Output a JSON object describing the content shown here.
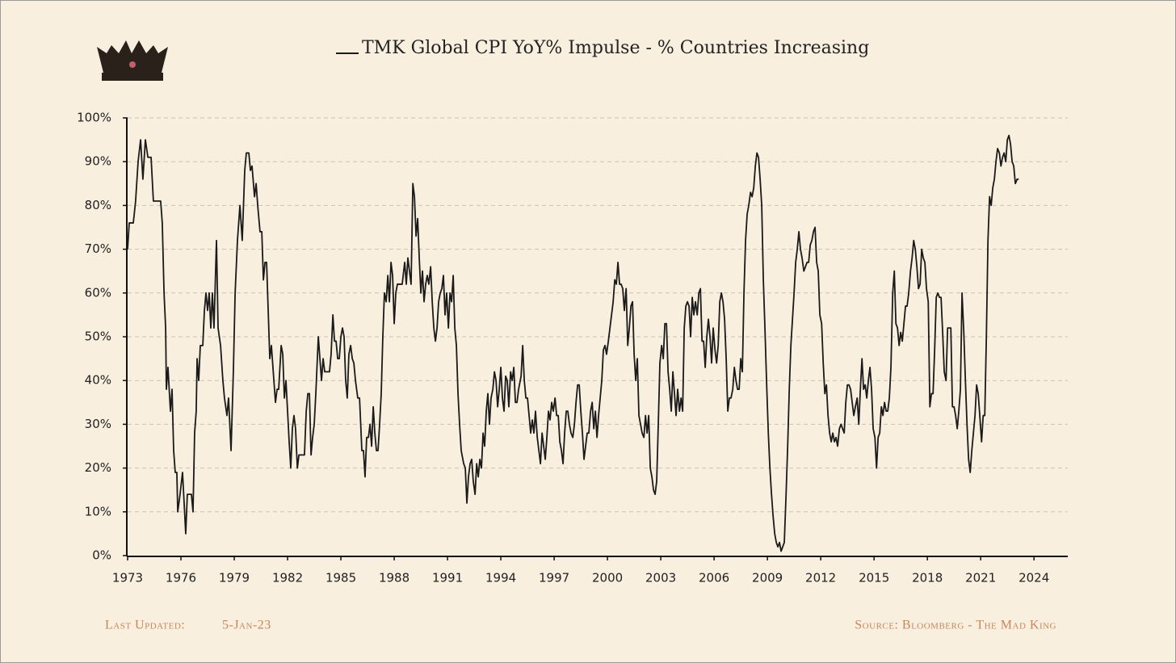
{
  "chart_data": {
    "type": "line",
    "footer": {
      "updated_label": "Last Updated:",
      "updated_date": "5-Jan-23",
      "source": "Source: Bloomberg - The Mad King"
    },
    "xlim": [
      1973,
      2025.9
    ],
    "xticks": [
      1973,
      1976,
      1979,
      1982,
      1985,
      1988,
      1991,
      1994,
      1997,
      2000,
      2003,
      2006,
      2009,
      2012,
      2015,
      2018,
      2021,
      2024
    ],
    "ylim": [
      0,
      100
    ],
    "yticks": [
      {
        "value": 0,
        "label": "0%"
      },
      {
        "value": 10,
        "label": "10%"
      },
      {
        "value": 20,
        "label": "20%"
      },
      {
        "value": 30,
        "label": "30%"
      },
      {
        "value": 40,
        "label": "40%"
      },
      {
        "value": 50,
        "label": "50%"
      },
      {
        "value": 60,
        "label": "60%"
      },
      {
        "value": 70,
        "label": "70%"
      },
      {
        "value": 80,
        "label": "80%"
      },
      {
        "value": 90,
        "label": "90%"
      },
      {
        "value": 100,
        "label": "100%"
      }
    ],
    "grid": true,
    "x": [
      1973.0,
      1973.09,
      1973.32,
      1973.45,
      1973.59,
      1973.73,
      1973.86,
      1974.0,
      1974.14,
      1974.32,
      1974.45,
      1974.86,
      1974.95,
      1975.05,
      1975.14,
      1975.18,
      1975.27,
      1975.41,
      1975.5,
      1975.59,
      1975.68,
      1975.77,
      1975.82,
      1975.95,
      1976.09,
      1976.18,
      1976.27,
      1976.36,
      1976.59,
      1976.68,
      1976.77,
      1976.86,
      1976.91,
      1977.0,
      1977.09,
      1977.23,
      1977.32,
      1977.41,
      1977.5,
      1977.59,
      1977.68,
      1977.77,
      1977.86,
      1978.0,
      1978.09,
      1978.23,
      1978.36,
      1978.45,
      1978.59,
      1978.68,
      1978.82,
      1978.95,
      1979.05,
      1979.18,
      1979.32,
      1979.45,
      1979.59,
      1979.68,
      1979.82,
      1979.91,
      1980.0,
      1980.14,
      1980.23,
      1980.32,
      1980.45,
      1980.55,
      1980.64,
      1980.73,
      1980.82,
      1981.0,
      1981.09,
      1981.23,
      1981.32,
      1981.41,
      1981.5,
      1981.64,
      1981.73,
      1981.82,
      1981.91,
      1982.0,
      1982.09,
      1982.18,
      1982.27,
      1982.36,
      1982.45,
      1982.55,
      1982.64,
      1982.95,
      1983.05,
      1983.14,
      1983.23,
      1983.32,
      1983.41,
      1983.5,
      1983.59,
      1983.73,
      1983.82,
      1983.91,
      1984.0,
      1984.09,
      1984.36,
      1984.45,
      1984.55,
      1984.64,
      1984.73,
      1984.82,
      1984.91,
      1985.0,
      1985.09,
      1985.18,
      1985.27,
      1985.36,
      1985.45,
      1985.55,
      1985.64,
      1985.73,
      1985.82,
      1985.95,
      1986.05,
      1986.18,
      1986.27,
      1986.36,
      1986.45,
      1986.55,
      1986.64,
      1986.73,
      1986.82,
      1986.91,
      1987.0,
      1987.09,
      1987.18,
      1987.27,
      1987.36,
      1987.45,
      1987.55,
      1987.64,
      1987.73,
      1987.82,
      1987.91,
      1988.0,
      1988.09,
      1988.18,
      1988.45,
      1988.59,
      1988.68,
      1988.77,
      1988.86,
      1988.95,
      1989.05,
      1989.14,
      1989.23,
      1989.32,
      1989.41,
      1989.5,
      1989.59,
      1989.68,
      1989.77,
      1989.86,
      1989.95,
      1990.05,
      1990.14,
      1990.23,
      1990.32,
      1990.41,
      1990.5,
      1990.59,
      1990.68,
      1990.77,
      1990.86,
      1990.95,
      1991.05,
      1991.14,
      1991.23,
      1991.32,
      1991.41,
      1991.5,
      1991.59,
      1991.68,
      1991.77,
      1991.91,
      1992.0,
      1992.09,
      1992.18,
      1992.27,
      1992.36,
      1992.45,
      1992.55,
      1992.64,
      1992.73,
      1992.82,
      1992.91,
      1993.0,
      1993.09,
      1993.18,
      1993.27,
      1993.36,
      1993.45,
      1993.55,
      1993.64,
      1993.73,
      1993.82,
      1993.91,
      1994.0,
      1994.09,
      1994.18,
      1994.27,
      1994.36,
      1994.45,
      1994.55,
      1994.64,
      1994.73,
      1994.82,
      1994.91,
      1995.0,
      1995.14,
      1995.23,
      1995.32,
      1995.41,
      1995.5,
      1995.59,
      1995.68,
      1995.77,
      1995.86,
      1995.95,
      1996.05,
      1996.14,
      1996.23,
      1996.32,
      1996.41,
      1996.5,
      1996.59,
      1996.68,
      1996.77,
      1996.86,
      1996.95,
      1997.05,
      1997.14,
      1997.23,
      1997.32,
      1997.41,
      1997.5,
      1997.59,
      1997.68,
      1997.77,
      1997.86,
      1997.95,
      1998.05,
      1998.14,
      1998.23,
      1998.32,
      1998.41,
      1998.5,
      1998.59,
      1998.68,
      1998.77,
      1998.86,
      1998.95,
      1999.05,
      1999.14,
      1999.23,
      1999.32,
      1999.41,
      1999.5,
      1999.59,
      1999.68,
      1999.77,
      1999.86,
      1999.95,
      2000.05,
      2000.14,
      2000.23,
      2000.32,
      2000.41,
      2000.5,
      2000.59,
      2000.68,
      2000.77,
      2000.86,
      2000.95,
      2001.05,
      2001.14,
      2001.23,
      2001.32,
      2001.41,
      2001.5,
      2001.59,
      2001.68,
      2001.77,
      2001.86,
      2001.95,
      2002.05,
      2002.14,
      2002.23,
      2002.32,
      2002.41,
      2002.5,
      2002.59,
      2002.68,
      2002.77,
      2002.86,
      2002.95,
      2003.05,
      2003.14,
      2003.23,
      2003.32,
      2003.41,
      2003.5,
      2003.59,
      2003.68,
      2003.77,
      2003.86,
      2003.95,
      2004.05,
      2004.14,
      2004.23,
      2004.32,
      2004.41,
      2004.5,
      2004.59,
      2004.68,
      2004.77,
      2004.86,
      2004.95,
      2005.05,
      2005.14,
      2005.23,
      2005.32,
      2005.41,
      2005.5,
      2005.59,
      2005.68,
      2005.77,
      2005.86,
      2005.95,
      2006.05,
      2006.14,
      2006.23,
      2006.32,
      2006.41,
      2006.5,
      2006.59,
      2006.68,
      2006.77,
      2006.86,
      2006.95,
      2007.05,
      2007.14,
      2007.23,
      2007.32,
      2007.41,
      2007.5,
      2007.59,
      2007.68,
      2007.77,
      2007.86,
      2007.95,
      2008.05,
      2008.14,
      2008.23,
      2008.32,
      2008.41,
      2008.5,
      2008.59,
      2008.68,
      2008.77,
      2008.86,
      2008.95,
      2009.05,
      2009.14,
      2009.23,
      2009.32,
      2009.41,
      2009.5,
      2009.59,
      2009.68,
      2009.77,
      2009.86,
      2009.95,
      2010.05,
      2010.14,
      2010.23,
      2010.32,
      2010.41,
      2010.5,
      2010.59,
      2010.68,
      2010.77,
      2010.86,
      2010.95,
      2011.05,
      2011.14,
      2011.23,
      2011.32,
      2011.41,
      2011.5,
      2011.59,
      2011.68,
      2011.77,
      2011.86,
      2011.95,
      2012.05,
      2012.14,
      2012.23,
      2012.32,
      2012.41,
      2012.5,
      2012.59,
      2012.68,
      2012.77,
      2012.86,
      2012.95,
      2013.05,
      2013.14,
      2013.23,
      2013.32,
      2013.41,
      2013.5,
      2013.59,
      2013.68,
      2013.77,
      2013.86,
      2013.95,
      2014.05,
      2014.14,
      2014.23,
      2014.32,
      2014.41,
      2014.5,
      2014.59,
      2014.68,
      2014.77,
      2014.86,
      2014.95,
      2015.05,
      2015.14,
      2015.23,
      2015.32,
      2015.41,
      2015.5,
      2015.59,
      2015.68,
      2015.77,
      2015.86,
      2015.95,
      2016.05,
      2016.14,
      2016.23,
      2016.32,
      2016.41,
      2016.5,
      2016.59,
      2016.68,
      2016.77,
      2016.86,
      2016.95,
      2017.05,
      2017.14,
      2017.23,
      2017.32,
      2017.41,
      2017.5,
      2017.59,
      2017.68,
      2017.77,
      2017.86,
      2017.95,
      2018.05,
      2018.14,
      2018.23,
      2018.32,
      2018.41,
      2018.5,
      2018.59,
      2018.68,
      2018.77,
      2018.86,
      2018.95,
      2019.05,
      2019.14,
      2019.32,
      2019.41,
      2019.5,
      2019.59,
      2019.68,
      2019.77,
      2019.86,
      2019.95,
      2020.05,
      2020.14,
      2020.23,
      2020.32,
      2020.41,
      2020.5,
      2020.59,
      2020.68,
      2020.77,
      2020.86,
      2020.95,
      2021.05,
      2021.14,
      2021.23,
      2021.32,
      2021.41,
      2021.5,
      2021.59,
      2021.68,
      2021.77,
      2021.86,
      2021.95,
      2022.05,
      2022.14,
      2022.23,
      2022.32,
      2022.41,
      2022.5,
      2022.59,
      2022.68,
      2022.77,
      2022.86,
      2022.95,
      2023.05,
      2023.14
    ],
    "series": [
      {
        "name": "TMK Global CPI YoY% Impulse - % Countries Increasing",
        "color": "#1a1a1a",
        "values": [
          70,
          76,
          76,
          81,
          90,
          95,
          86,
          95,
          91,
          91,
          81,
          81,
          76,
          60,
          52,
          38,
          43,
          33,
          38,
          24,
          19,
          19,
          10,
          14,
          19,
          12,
          5,
          14,
          14,
          10,
          28,
          33,
          45,
          40,
          48,
          48,
          56,
          60,
          56,
          60,
          52,
          60,
          52,
          72,
          52,
          48,
          40,
          36,
          32,
          36,
          24,
          42,
          60,
          72,
          80,
          72,
          88,
          92,
          92,
          88,
          89,
          82,
          85,
          80,
          74,
          74,
          63,
          67,
          67,
          45,
          48,
          40,
          35,
          38,
          38,
          48,
          46,
          36,
          40,
          33,
          26,
          20,
          29,
          32,
          29,
          20,
          23,
          23,
          33,
          37,
          37,
          23,
          27,
          30,
          37,
          50,
          45,
          40,
          45,
          42,
          42,
          46,
          55,
          49,
          49,
          45,
          45,
          50,
          52,
          50,
          40,
          36,
          46,
          48,
          45,
          44,
          40,
          36,
          36,
          24,
          24,
          18,
          27,
          27,
          30,
          25,
          34,
          28,
          24,
          24,
          30,
          37,
          50,
          60,
          58,
          64,
          58,
          67,
          64,
          53,
          60,
          62,
          62,
          67,
          62,
          68,
          65,
          62,
          85,
          82,
          73,
          77,
          68,
          60,
          65,
          58,
          62,
          64,
          62,
          66,
          58,
          52,
          49,
          52,
          58,
          60,
          61,
          64,
          55,
          60,
          52,
          60,
          58,
          64,
          52,
          48,
          37,
          30,
          24,
          21,
          20,
          12,
          18,
          21,
          22,
          17,
          14,
          21,
          18,
          22,
          20,
          28,
          25,
          33,
          37,
          30,
          36,
          38,
          42,
          40,
          34,
          38,
          43,
          36,
          33,
          41,
          40,
          34,
          42,
          40,
          43,
          35,
          35,
          38,
          41,
          48,
          40,
          36,
          36,
          32,
          28,
          31,
          28,
          33,
          27,
          24,
          21,
          28,
          25,
          22,
          27,
          33,
          31,
          35,
          33,
          36,
          32,
          32,
          26,
          24,
          21,
          28,
          33,
          33,
          30,
          28,
          27,
          30,
          35,
          39,
          39,
          33,
          28,
          22,
          25,
          28,
          28,
          33,
          35,
          29,
          33,
          27,
          32,
          36,
          40,
          47,
          48,
          46,
          49,
          52,
          55,
          58,
          63,
          62,
          67,
          62,
          62,
          61,
          56,
          61,
          48,
          52,
          57,
          58,
          46,
          40,
          45,
          32,
          30,
          28,
          27,
          32,
          28,
          32,
          20,
          18,
          15,
          14,
          17,
          30,
          44,
          48,
          45,
          53,
          53,
          42,
          38,
          33,
          42,
          37,
          32,
          38,
          33,
          36,
          33,
          52,
          57,
          58,
          57,
          50,
          59,
          55,
          58,
          55,
          60,
          61,
          49,
          49,
          43,
          50,
          54,
          50,
          44,
          52,
          47,
          44,
          48,
          58,
          60,
          58,
          54,
          45,
          33,
          36,
          36,
          38,
          43,
          40,
          38,
          38,
          45,
          42,
          60,
          72,
          78,
          80,
          83,
          82,
          84,
          89,
          92,
          91,
          86,
          80,
          63,
          52,
          40,
          28,
          20,
          14,
          9,
          5,
          3,
          2,
          3,
          1,
          2,
          3,
          14,
          25,
          38,
          48,
          54,
          60,
          67,
          70,
          74,
          70,
          68,
          65,
          66,
          67,
          67,
          71,
          72,
          74,
          75,
          67,
          65,
          55,
          53,
          44,
          37,
          39,
          32,
          28,
          26,
          28,
          26,
          27,
          25,
          29,
          30,
          29,
          28,
          35,
          39,
          39,
          38,
          35,
          32,
          34,
          36,
          30,
          38,
          45,
          38,
          39,
          36,
          40,
          43,
          38,
          29,
          27,
          20,
          27,
          28,
          34,
          32,
          35,
          33,
          33,
          36,
          43,
          60,
          65,
          53,
          52,
          48,
          51,
          49,
          53,
          57,
          57,
          60,
          65,
          68,
          72,
          70,
          66,
          61,
          62,
          70,
          68,
          67,
          61,
          58,
          34,
          37,
          37,
          47,
          59,
          60,
          59,
          59,
          51,
          42,
          40,
          52,
          52,
          34,
          34,
          32,
          29,
          33,
          38,
          60,
          51,
          40,
          30,
          22,
          19,
          24,
          28,
          32,
          39,
          37,
          32,
          26,
          32,
          32,
          50,
          72,
          82,
          80,
          84,
          86,
          90,
          93,
          92,
          89,
          91,
          92,
          90,
          95,
          96,
          94,
          90,
          89,
          85,
          86,
          86
        ]
      }
    ]
  }
}
